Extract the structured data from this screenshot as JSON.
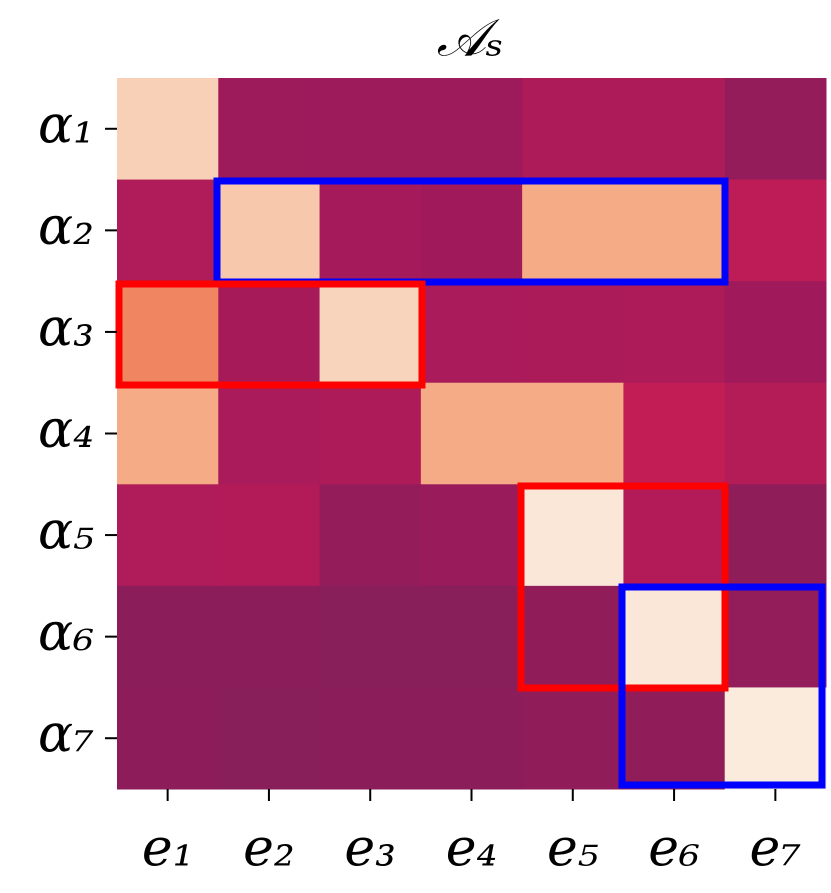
{
  "chart_data": {
    "type": "heatmap",
    "title": "𝒜ₛ",
    "x": [
      "e₁",
      "e₂",
      "e₃",
      "e₄",
      "e₅",
      "e₆",
      "e₇"
    ],
    "y": [
      "α₁",
      "α₂",
      "α₃",
      "α₄",
      "α₅",
      "α₆",
      "α₇"
    ],
    "values": [
      [
        0.93,
        0.26,
        0.26,
        0.26,
        0.33,
        0.33,
        0.22
      ],
      [
        0.34,
        0.91,
        0.29,
        0.27,
        0.83,
        0.83,
        0.4
      ],
      [
        0.72,
        0.3,
        0.94,
        0.31,
        0.32,
        0.33,
        0.27
      ],
      [
        0.83,
        0.31,
        0.33,
        0.83,
        0.83,
        0.42,
        0.36
      ],
      [
        0.34,
        0.35,
        0.22,
        0.24,
        0.99,
        0.35,
        0.19
      ],
      [
        0.17,
        0.17,
        0.16,
        0.16,
        0.2,
        0.99,
        0.21
      ],
      [
        0.18,
        0.16,
        0.17,
        0.17,
        0.2,
        0.2,
        1.0
      ]
    ],
    "vlim": [
      0,
      1
    ],
    "colormap": [
      "#5a1550",
      "#841e5a",
      "#a31a5b",
      "#c41d55",
      "#e43d4b",
      "#ef845f",
      "#f5b48f",
      "#faebdd"
    ]
  }
}
